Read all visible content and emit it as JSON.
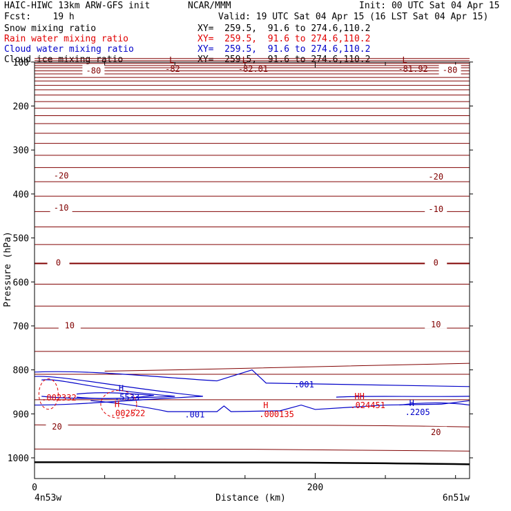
{
  "header": {
    "model": "HAIC-HIWC 13km ARW-GFS init",
    "center": "NCAR/MMM",
    "init": "Init: 00 UTC Sat 04 Apr 15",
    "fcst": "Fcst:    19 h",
    "valid": "Valid: 19 UTC Sat 04 Apr 15 (16 LST Sat 04 Apr 15)"
  },
  "legend": [
    {
      "label": "Snow mixing ratio",
      "xy": "XY=  259.5,  91.6 to 274.6,110.2",
      "color": "#000000"
    },
    {
      "label": "Rain water mixing ratio",
      "xy": "XY=  259.5,  91.6 to 274.6,110.2",
      "color": "#e00000"
    },
    {
      "label": "Cloud water mixing ratio",
      "xy": "XY=  259.5,  91.6 to 274.6,110.2",
      "color": "#0000c8"
    },
    {
      "label": "Cloud ice mixing ratio",
      "xy": "XY=  259.5,  91.6 to 274.6,110.2",
      "color": "#000000"
    }
  ],
  "chart_data": {
    "type": "contour-cross-section",
    "xlabel": "Distance (km)",
    "ylabel": "Pressure (hPa)",
    "xlim": [
      0,
      310
    ],
    "ylim": [
      1050,
      90
    ],
    "y_scale": "log-pressure",
    "x_ticks": [
      {
        "value": 0,
        "label": "0"
      },
      {
        "value": 200,
        "label": "200"
      }
    ],
    "x_minor_ticks": [
      50,
      100,
      150,
      250,
      300
    ],
    "y_ticks": [
      100,
      200,
      300,
      400,
      500,
      600,
      700,
      800,
      900,
      1000
    ],
    "endpoint_labels": {
      "left": "4n53w",
      "right": "6n51w"
    },
    "temperature_contour_labels": [
      {
        "text": "-80",
        "x": 42,
        "p": 118
      },
      {
        "text": "-80",
        "x": 296,
        "p": 117
      },
      {
        "text": "-20",
        "x": 19,
        "p": 357
      },
      {
        "text": "-20",
        "x": 286,
        "p": 359
      },
      {
        "text": "-10",
        "x": 19,
        "p": 430
      },
      {
        "text": "-10",
        "x": 286,
        "p": 433
      },
      {
        "text": "0",
        "x": 17,
        "p": 555
      },
      {
        "text": "0",
        "x": 286,
        "p": 555
      },
      {
        "text": "10",
        "x": 25,
        "p": 698
      },
      {
        "text": "10",
        "x": 286,
        "p": 695
      },
      {
        "text": "20",
        "x": 16,
        "p": 928
      },
      {
        "text": "20",
        "x": 286,
        "p": 940
      }
    ],
    "extrema_labels": [
      {
        "marker": "L",
        "value": "-82",
        "x": 96,
        "p": 105,
        "color": "#800000"
      },
      {
        "marker": "L",
        "value": "-82.01",
        "x": 148,
        "p": 105,
        "color": "#800000"
      },
      {
        "marker": "L",
        "value": "-81.92",
        "x": 262,
        "p": 105,
        "color": "#800000"
      },
      {
        "marker": "H",
        "value": ".5533",
        "x": 60,
        "p": 852,
        "color": "#0000c8"
      },
      {
        "marker": "H",
        "value": ".002522",
        "x": 57,
        "p": 888,
        "color": "#e00000"
      },
      {
        "marker": "H",
        "value": ".000135",
        "x": 163,
        "p": 890,
        "color": "#e00000"
      },
      {
        "marker": "HH",
        "value": ".024451",
        "x": 228,
        "p": 870,
        "color": "#e00000"
      },
      {
        "marker": "H",
        "value": ".2205",
        "x": 267,
        "p": 885,
        "color": "#0000c8"
      }
    ],
    "other_labels": [
      {
        "text": ".002332",
        "x": 5,
        "p": 862,
        "color": "#e00000"
      },
      {
        "text": ".001",
        "x": 185,
        "p": 832,
        "color": "#0000c8"
      },
      {
        "text": ".001",
        "x": 107,
        "p": 900,
        "color": "#0000c8"
      }
    ],
    "isotherm_levels_hpa": [
      92,
      97,
      103,
      108,
      113,
      120,
      127,
      135,
      143,
      153,
      163,
      175,
      190,
      205,
      222,
      240,
      262,
      285,
      312,
      340,
      372,
      405,
      440,
      475,
      515,
      558,
      605,
      655,
      705,
      758,
      810,
      868,
      925,
      980,
      1010
    ],
    "colors": {
      "temperature": "#800000",
      "cloud_water": "#0000c8",
      "rain": "#e00000",
      "axes": "#000000"
    }
  }
}
